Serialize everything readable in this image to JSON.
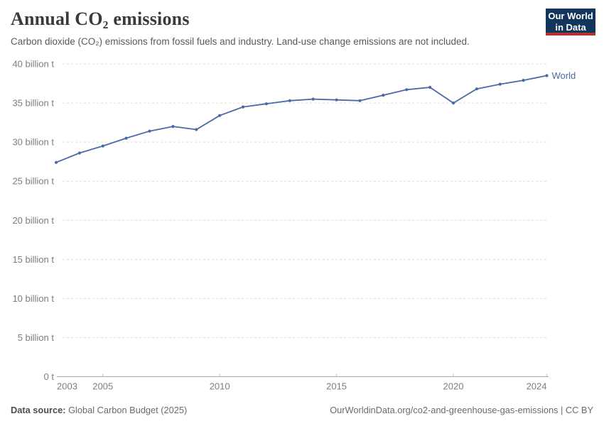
{
  "header": {
    "title": "Annual CO₂ emissions",
    "subtitle": "Carbon dioxide (CO₂) emissions from fossil fuels and industry. Land-use change emissions are not included.",
    "logo": {
      "line1": "Our World",
      "line2": "in Data",
      "bg_color": "#12355b",
      "accent_color": "#b0342c"
    }
  },
  "chart_data": {
    "type": "line",
    "title": "Annual CO₂ emissions",
    "xlabel": "",
    "ylabel": "",
    "x": [
      2003,
      2004,
      2005,
      2006,
      2007,
      2008,
      2009,
      2010,
      2011,
      2012,
      2013,
      2014,
      2015,
      2016,
      2017,
      2018,
      2019,
      2020,
      2021,
      2022,
      2023,
      2024
    ],
    "series": [
      {
        "name": "World",
        "color": "#4a69a8",
        "values": [
          27.4,
          28.6,
          29.5,
          30.5,
          31.4,
          32.0,
          31.6,
          33.4,
          34.5,
          34.9,
          35.3,
          35.5,
          35.4,
          35.3,
          36.0,
          36.7,
          37.0,
          35.0,
          36.8,
          37.4,
          37.9,
          38.5
        ]
      }
    ],
    "value_unit": "billion t",
    "xlim": [
      2003,
      2024
    ],
    "ylim": [
      0,
      40
    ],
    "y_ticks": [
      0,
      5,
      10,
      15,
      20,
      25,
      30,
      35,
      40
    ],
    "y_tick_labels": [
      "0 t",
      "5 billion t",
      "10 billion t",
      "15 billion t",
      "20 billion t",
      "25 billion t",
      "30 billion t",
      "35 billion t",
      "40 billion t"
    ],
    "x_tick_values": [
      2003,
      2005,
      2010,
      2015,
      2020,
      2024
    ],
    "x_tick_labels": [
      "2003",
      "2005",
      "2010",
      "2015",
      "2020",
      "2024"
    ],
    "grid": "horizontal-dashed",
    "legend": "end-of-line-label",
    "axis_text_color": "#7d7d7d",
    "gridline_color": "#dcdcdc",
    "axis_line_color": "#a8a8a8"
  },
  "footer": {
    "source_label": "Data source:",
    "source_value": "Global Carbon Budget (2025)",
    "credit": "OurWorldinData.org/co2-and-greenhouse-gas-emissions | CC BY"
  }
}
